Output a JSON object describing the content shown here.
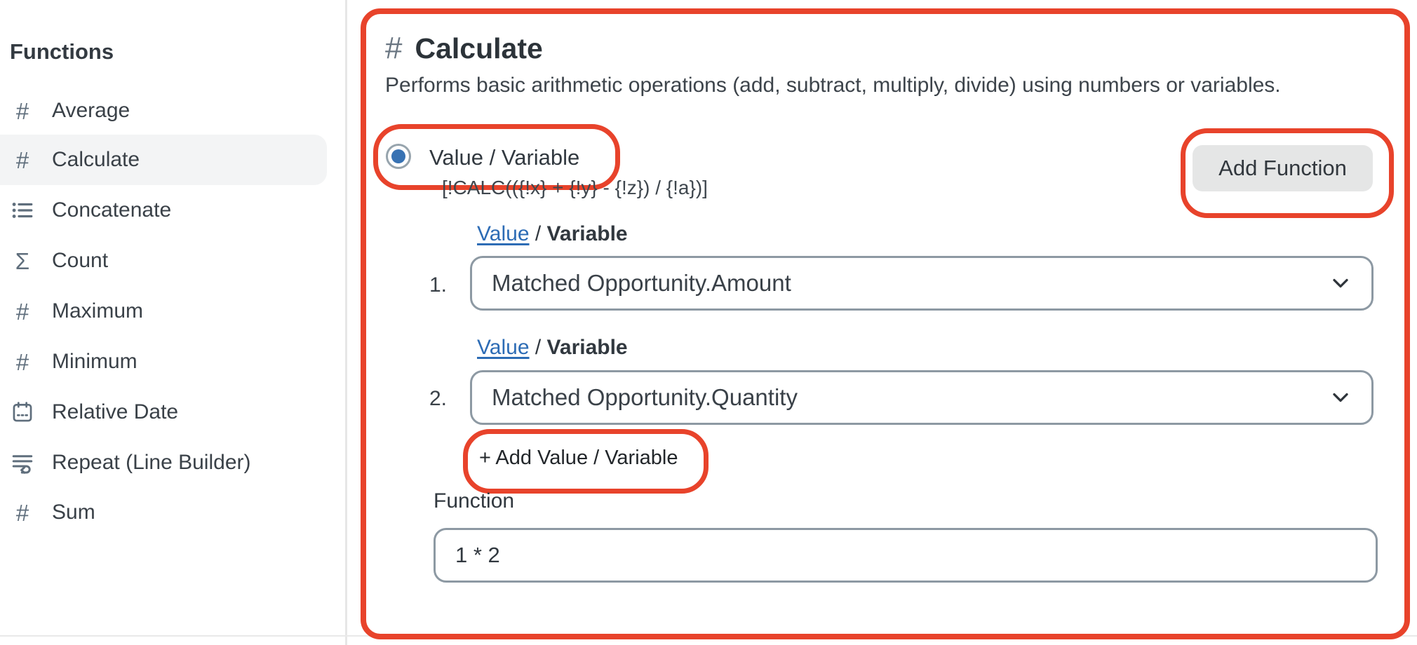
{
  "sidebar": {
    "title": "Functions",
    "items": [
      {
        "label": "Average",
        "icon": "hash",
        "selected": false
      },
      {
        "label": "Calculate",
        "icon": "hash",
        "selected": true
      },
      {
        "label": "Concatenate",
        "icon": "list",
        "selected": false
      },
      {
        "label": "Count",
        "icon": "sigma",
        "selected": false
      },
      {
        "label": "Maximum",
        "icon": "hash",
        "selected": false
      },
      {
        "label": "Minimum",
        "icon": "hash",
        "selected": false
      },
      {
        "label": "Relative Date",
        "icon": "calendar",
        "selected": false
      },
      {
        "label": "Repeat (Line Builder)",
        "icon": "repeat",
        "selected": false
      },
      {
        "label": "Sum",
        "icon": "hash",
        "selected": false
      }
    ]
  },
  "main": {
    "title": "Calculate",
    "title_icon": "#",
    "description": "Performs basic arithmetic operations (add, subtract, multiply, divide) using numbers or variables.",
    "option": {
      "label": "Value / Variable",
      "selected": true
    },
    "formula_syntax": "[!CALC(({!x} + {!y} - {!z}) / {!a})]",
    "add_function_label": "Add Function",
    "value_rows": [
      {
        "number": "1.",
        "label_link": "Value",
        "label_separator": " / ",
        "label_bold": "Variable",
        "selected_value": "Matched Opportunity.Amount"
      },
      {
        "number": "2.",
        "label_link": "Value",
        "label_separator": " / ",
        "label_bold": "Variable",
        "selected_value": "Matched Opportunity.Quantity"
      }
    ],
    "add_value_label": "+ Add Value / Variable",
    "function_label": "Function",
    "function_value": "1 * 2"
  },
  "colors": {
    "annotation_red": "#e8432b",
    "radio_blue": "#3872b3",
    "link_blue": "#2d6cb5",
    "icon_gray": "#5f6e7c",
    "selected_row_bg": "#f3f4f5",
    "button_bg": "#e5e6e6"
  }
}
